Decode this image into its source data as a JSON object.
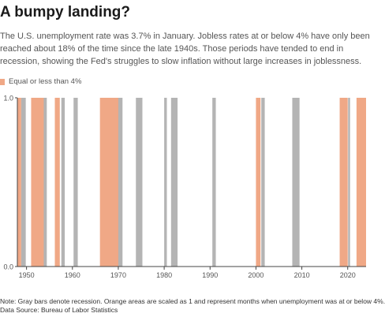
{
  "title": "A bumpy landing?",
  "subtitle": "The U.S. unemployment rate was 3.7% in January. Jobless rates at or below 4% have only been reached about 18% of the time since the late 1940s. Those periods have tended to end in recession, showing the Fed's struggles to slow inflation without large increases in joblessness.",
  "legend_label": "Equal or less than 4%",
  "note": "Note: Gray bars denote recession. Orange areas are scaled as 1 and represent months when unemployment was at or below 4%.",
  "source": "Data Source: Bureau of Labor Statistics",
  "colors": {
    "orange": "#f0a886",
    "gray": "#b4b4b4",
    "axis": "#444444",
    "text": "#555555"
  },
  "chart_data": {
    "type": "area",
    "x_label": "",
    "y_label": "",
    "xlim": [
      1948,
      2024
    ],
    "ylim": [
      0,
      1
    ],
    "x_ticks": [
      "1950",
      "1960",
      "1970",
      "1980",
      "1990",
      "2000",
      "2010",
      "2020"
    ],
    "y_ticks": [
      "0.0",
      "1.0"
    ],
    "series": [
      {
        "name": "Equal or less than 4%",
        "value": 1,
        "periods": [
          [
            "1948-01",
            "1948-10"
          ],
          [
            "1951-01",
            "1953-09"
          ],
          [
            "1956-03",
            "1957-03"
          ],
          [
            "1966-01",
            "1969-12"
          ],
          [
            "2000-01",
            "2000-12"
          ],
          [
            "2018-04",
            "2019-12"
          ],
          [
            "2021-12",
            "2023-12"
          ]
        ]
      }
    ],
    "recessions": [
      [
        "1948-11",
        "1949-10"
      ],
      [
        "1953-07",
        "1954-05"
      ],
      [
        "1957-08",
        "1958-04"
      ],
      [
        "1960-04",
        "1961-02"
      ],
      [
        "1969-12",
        "1970-11"
      ],
      [
        "1973-11",
        "1975-03"
      ],
      [
        "1980-01",
        "1980-07"
      ],
      [
        "1981-07",
        "1982-11"
      ],
      [
        "1990-07",
        "1991-03"
      ],
      [
        "2001-03",
        "2001-11"
      ],
      [
        "2007-12",
        "2009-06"
      ],
      [
        "2020-02",
        "2020-04"
      ]
    ]
  }
}
